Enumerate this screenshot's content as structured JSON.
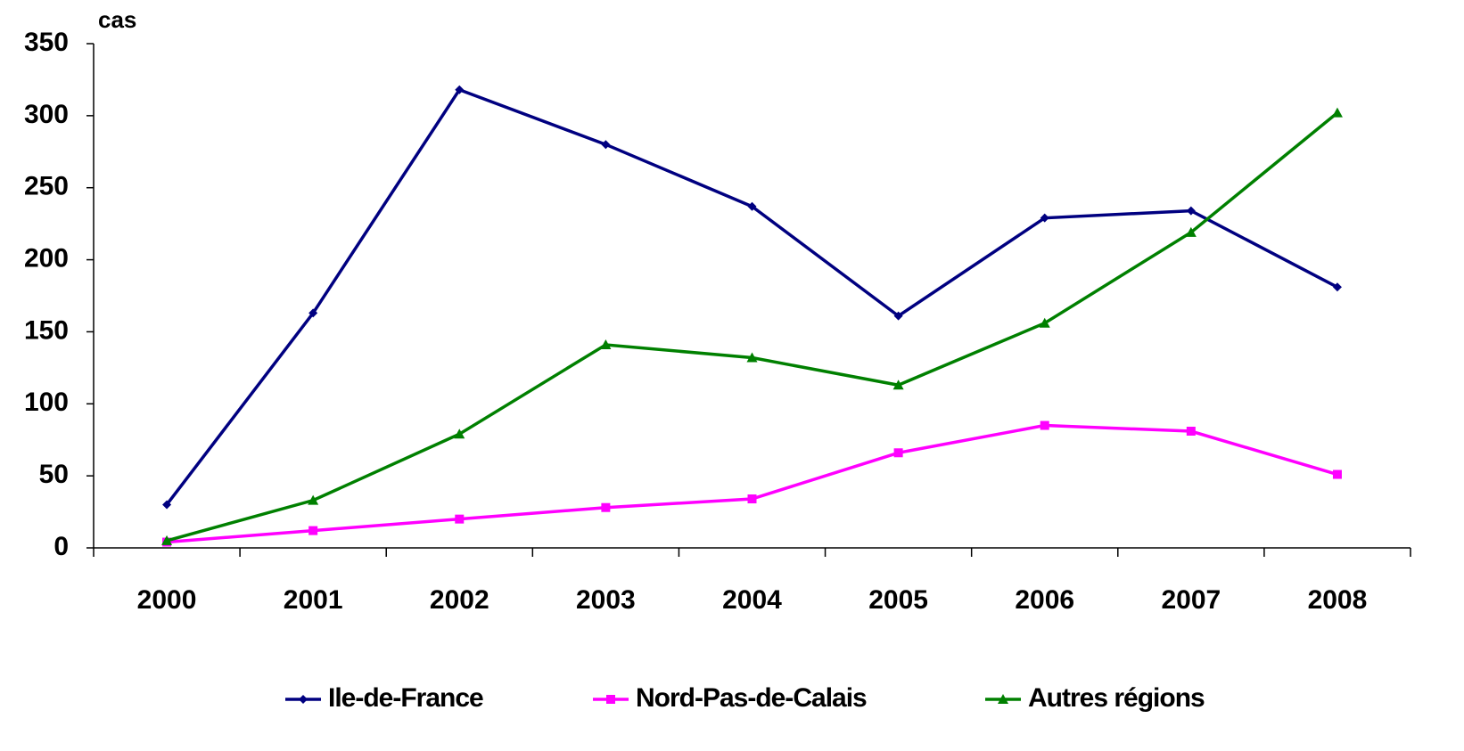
{
  "chart_data": {
    "type": "line",
    "y_label": "cas",
    "categories": [
      "2000",
      "2001",
      "2002",
      "2003",
      "2004",
      "2005",
      "2006",
      "2007",
      "2008"
    ],
    "series": [
      {
        "name": "Ile-de-France",
        "color": "#000080",
        "marker": "diamond",
        "values": [
          30,
          163,
          318,
          280,
          237,
          161,
          229,
          234,
          181
        ]
      },
      {
        "name": "Nord-Pas-de-Calais",
        "color": "#ff00ff",
        "marker": "square",
        "values": [
          4,
          12,
          20,
          28,
          34,
          66,
          85,
          81,
          51
        ]
      },
      {
        "name": "Autres régions",
        "color": "#008000",
        "marker": "triangle",
        "values": [
          5,
          33,
          79,
          141,
          132,
          113,
          156,
          219,
          302
        ]
      }
    ],
    "ylim": [
      0,
      350
    ],
    "yticks": [
      0,
      50,
      100,
      150,
      200,
      250,
      300,
      350
    ],
    "grid": false,
    "legend": "bottom"
  }
}
